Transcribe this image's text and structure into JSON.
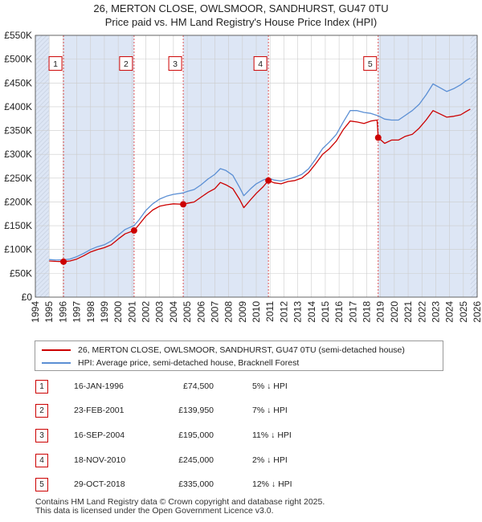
{
  "chart_data": {
    "type": "line",
    "title": "26, MERTON CLOSE, OWLSMOOR, SANDHURST, GU47 0TU",
    "subtitle": "Price paid vs. HM Land Registry's House Price Index (HPI)",
    "xlim": [
      1994,
      2026
    ],
    "ylim": [
      0,
      550000
    ],
    "y_ticks": [
      0,
      50000,
      100000,
      150000,
      200000,
      250000,
      300000,
      350000,
      400000,
      450000,
      500000,
      550000
    ],
    "y_tick_labels": [
      "£0",
      "£50K",
      "£100K",
      "£150K",
      "£200K",
      "£250K",
      "£300K",
      "£350K",
      "£400K",
      "£450K",
      "£500K",
      "£550K"
    ],
    "x_ticks": [
      1994,
      1995,
      1996,
      1997,
      1998,
      1999,
      2000,
      2001,
      2002,
      2003,
      2004,
      2005,
      2006,
      2007,
      2008,
      2009,
      2010,
      2011,
      2012,
      2013,
      2014,
      2015,
      2016,
      2017,
      2018,
      2019,
      2020,
      2021,
      2022,
      2023,
      2024,
      2025,
      2026
    ],
    "x_tick_labels": [
      "1994",
      "1995",
      "1996",
      "1997",
      "1998",
      "1999",
      "2000",
      "2001",
      "2002",
      "2003",
      "2004",
      "2005",
      "2006",
      "2007",
      "2008",
      "2009",
      "2010",
      "2011",
      "2012",
      "2013",
      "2014",
      "2015",
      "2016",
      "2017",
      "2018",
      "2019",
      "2020",
      "2021",
      "2022",
      "2023",
      "2024",
      "2025",
      "2026"
    ],
    "data_start": 1995.0,
    "data_end": 2025.5,
    "series": [
      {
        "name": "26, MERTON CLOSE, OWLSMOOR, SANDHURST, GU47 0TU (semi-detached house)",
        "color": "#cc0000",
        "points": [
          [
            1995.0,
            76000
          ],
          [
            1995.5,
            75000
          ],
          [
            1996.04,
            74500
          ],
          [
            1996.5,
            76000
          ],
          [
            1997.0,
            80000
          ],
          [
            1997.5,
            87000
          ],
          [
            1998.0,
            95000
          ],
          [
            1998.5,
            100000
          ],
          [
            1999.0,
            104000
          ],
          [
            1999.5,
            110000
          ],
          [
            2000.0,
            122000
          ],
          [
            2000.5,
            133000
          ],
          [
            2001.15,
            139950
          ],
          [
            2001.5,
            152000
          ],
          [
            2002.0,
            170000
          ],
          [
            2002.5,
            183000
          ],
          [
            2003.0,
            191000
          ],
          [
            2003.5,
            194000
          ],
          [
            2004.0,
            196000
          ],
          [
            2004.71,
            195000
          ],
          [
            2005.0,
            197000
          ],
          [
            2005.5,
            200000
          ],
          [
            2006.0,
            210000
          ],
          [
            2006.5,
            220000
          ],
          [
            2007.0,
            228000
          ],
          [
            2007.4,
            241000
          ],
          [
            2007.8,
            236000
          ],
          [
            2008.3,
            228000
          ],
          [
            2008.8,
            205000
          ],
          [
            2009.1,
            188000
          ],
          [
            2009.6,
            205000
          ],
          [
            2010.0,
            218000
          ],
          [
            2010.5,
            232000
          ],
          [
            2010.88,
            245000
          ],
          [
            2011.3,
            240000
          ],
          [
            2011.8,
            238000
          ],
          [
            2012.3,
            243000
          ],
          [
            2012.8,
            245000
          ],
          [
            2013.3,
            250000
          ],
          [
            2013.8,
            262000
          ],
          [
            2014.3,
            280000
          ],
          [
            2014.8,
            300000
          ],
          [
            2015.3,
            312000
          ],
          [
            2015.8,
            328000
          ],
          [
            2016.3,
            352000
          ],
          [
            2016.8,
            370000
          ],
          [
            2017.3,
            368000
          ],
          [
            2017.8,
            365000
          ],
          [
            2018.3,
            370000
          ],
          [
            2018.75,
            372000
          ],
          [
            2018.83,
            335000
          ],
          [
            2019.3,
            323000
          ],
          [
            2019.8,
            330000
          ],
          [
            2020.3,
            330000
          ],
          [
            2020.8,
            338000
          ],
          [
            2021.3,
            342000
          ],
          [
            2021.8,
            355000
          ],
          [
            2022.3,
            372000
          ],
          [
            2022.8,
            392000
          ],
          [
            2023.3,
            385000
          ],
          [
            2023.8,
            378000
          ],
          [
            2024.3,
            380000
          ],
          [
            2024.8,
            383000
          ],
          [
            2025.2,
            390000
          ],
          [
            2025.5,
            395000
          ]
        ]
      },
      {
        "name": "HPI: Average price, semi-detached house, Bracknell Forest",
        "color": "#5b8fd4",
        "points": [
          [
            1995.0,
            79000
          ],
          [
            1995.5,
            78000
          ],
          [
            1996.04,
            78500
          ],
          [
            1996.5,
            80000
          ],
          [
            1997.0,
            85000
          ],
          [
            1997.5,
            92000
          ],
          [
            1998.0,
            100000
          ],
          [
            1998.5,
            106000
          ],
          [
            1999.0,
            110000
          ],
          [
            1999.5,
            118000
          ],
          [
            2000.0,
            130000
          ],
          [
            2000.5,
            142000
          ],
          [
            2001.15,
            150500
          ],
          [
            2001.5,
            162000
          ],
          [
            2002.0,
            182000
          ],
          [
            2002.5,
            196000
          ],
          [
            2003.0,
            206000
          ],
          [
            2003.5,
            212000
          ],
          [
            2004.0,
            216000
          ],
          [
            2004.71,
            219000
          ],
          [
            2005.0,
            222000
          ],
          [
            2005.5,
            226000
          ],
          [
            2006.0,
            236000
          ],
          [
            2006.5,
            248000
          ],
          [
            2007.0,
            258000
          ],
          [
            2007.4,
            270000
          ],
          [
            2007.8,
            266000
          ],
          [
            2008.3,
            256000
          ],
          [
            2008.8,
            230000
          ],
          [
            2009.1,
            213000
          ],
          [
            2009.6,
            228000
          ],
          [
            2010.0,
            238000
          ],
          [
            2010.5,
            246000
          ],
          [
            2010.88,
            250000
          ],
          [
            2011.3,
            246000
          ],
          [
            2011.8,
            244000
          ],
          [
            2012.3,
            248000
          ],
          [
            2012.8,
            252000
          ],
          [
            2013.3,
            258000
          ],
          [
            2013.8,
            270000
          ],
          [
            2014.3,
            290000
          ],
          [
            2014.8,
            312000
          ],
          [
            2015.3,
            326000
          ],
          [
            2015.8,
            342000
          ],
          [
            2016.3,
            368000
          ],
          [
            2016.8,
            392000
          ],
          [
            2017.3,
            392000
          ],
          [
            2017.8,
            388000
          ],
          [
            2018.3,
            386000
          ],
          [
            2018.83,
            381000
          ],
          [
            2019.3,
            374000
          ],
          [
            2019.8,
            372000
          ],
          [
            2020.3,
            372000
          ],
          [
            2020.8,
            382000
          ],
          [
            2021.3,
            392000
          ],
          [
            2021.8,
            405000
          ],
          [
            2022.3,
            425000
          ],
          [
            2022.8,
            448000
          ],
          [
            2023.3,
            440000
          ],
          [
            2023.8,
            432000
          ],
          [
            2024.3,
            438000
          ],
          [
            2024.8,
            446000
          ],
          [
            2025.2,
            455000
          ],
          [
            2025.5,
            460000
          ]
        ]
      }
    ],
    "sales": [
      {
        "n": "1",
        "x": 1996.04,
        "y": 74500,
        "date": "16-JAN-1996",
        "price": "£74,500",
        "hpi": "5% ↓ HPI"
      },
      {
        "n": "2",
        "x": 2001.15,
        "y": 139950,
        "date": "23-FEB-2001",
        "price": "£139,950",
        "hpi": "7% ↓ HPI"
      },
      {
        "n": "3",
        "x": 2004.71,
        "y": 195000,
        "date": "16-SEP-2004",
        "price": "£195,000",
        "hpi": "11% ↓ HPI"
      },
      {
        "n": "4",
        "x": 2010.88,
        "y": 245000,
        "date": "18-NOV-2010",
        "price": "£245,000",
        "hpi": "2% ↓ HPI"
      },
      {
        "n": "5",
        "x": 2018.83,
        "y": 335000,
        "date": "29-OCT-2018",
        "price": "£335,000",
        "hpi": "12% ↓ HPI"
      }
    ],
    "marker_label_value": 490000,
    "colors": {
      "grid": "#cccccc",
      "shade": "#dde6f5",
      "hatch": "#c7d0e0",
      "sale_line": "#dd4444",
      "plot_bg": "#ffffff"
    }
  },
  "legend": {
    "property_label": "26, MERTON CLOSE, OWLSMOOR, SANDHURST, GU47 0TU (semi-detached house)",
    "hpi_label": "HPI: Average price, semi-detached house, Bracknell Forest"
  },
  "footer": {
    "line1": "Contains HM Land Registry data © Crown copyright and database right 2025.",
    "line2": "This data is licensed under the Open Government Licence v3.0."
  }
}
